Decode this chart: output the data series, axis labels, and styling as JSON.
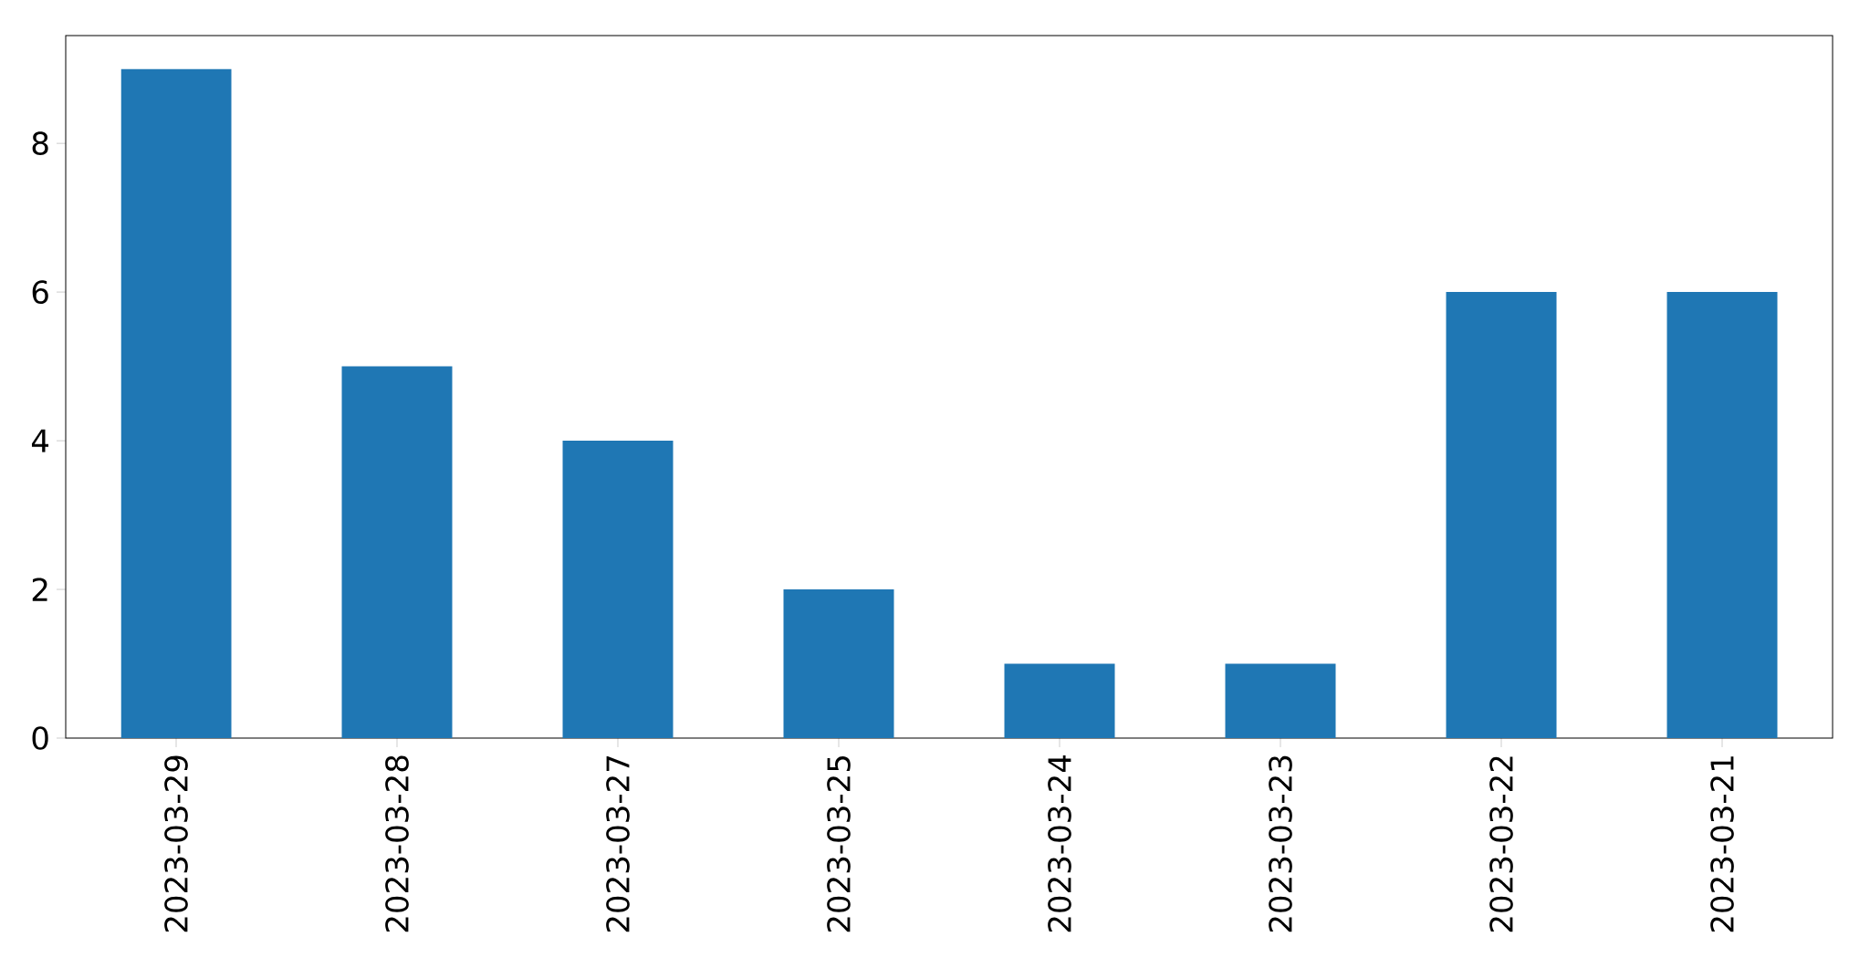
{
  "chart_data": {
    "type": "bar",
    "categories": [
      "2023-03-29",
      "2023-03-28",
      "2023-03-27",
      "2023-03-25",
      "2023-03-24",
      "2023-03-23",
      "2023-03-22",
      "2023-03-21"
    ],
    "values": [
      9,
      5,
      4,
      2,
      1,
      1,
      6,
      6
    ],
    "color": "#1f77b4",
    "ylim": [
      0,
      9.45
    ],
    "yticks": [
      0,
      2,
      4,
      6,
      8
    ]
  }
}
